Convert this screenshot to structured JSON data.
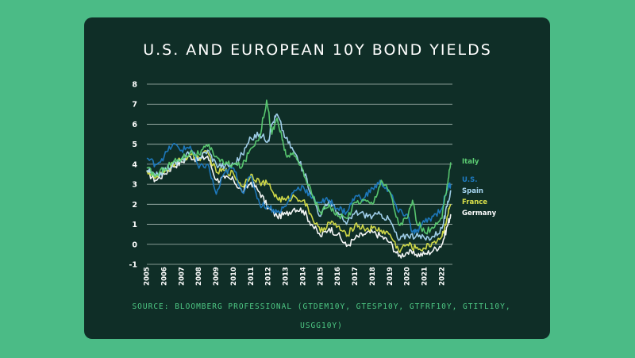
{
  "chart_data": {
    "type": "line",
    "title": "U.S. AND EUROPEAN 10Y BOND YIELDS",
    "xlabel": "",
    "ylabel": "",
    "xlim": [
      2005,
      2022.6
    ],
    "ylim": [
      -1,
      8
    ],
    "y_ticks": [
      -1,
      0,
      1,
      2,
      3,
      4,
      5,
      6,
      7,
      8
    ],
    "x_ticks": [
      2005,
      2006,
      2007,
      2008,
      2009,
      2010,
      2011,
      2012,
      2013,
      2014,
      2015,
      2016,
      2017,
      2018,
      2019,
      2020,
      2021,
      2022
    ],
    "grid": true,
    "legend": "right, labels at line ends",
    "source": "SOURCE: BLOOMBERG PROFESSIONAL (GTDEM10Y, GTESP10Y, GTFRF10Y, GTITL10Y, USGG10Y)",
    "series": [
      {
        "name": "Germany",
        "color": "#ffffff",
        "x": [
          2005,
          2005.5,
          2006,
          2006.5,
          2007,
          2007.5,
          2008,
          2008.5,
          2009,
          2009.5,
          2010,
          2010.5,
          2011,
          2011.5,
          2012,
          2012.5,
          2013,
          2013.5,
          2014,
          2014.5,
          2015,
          2015.5,
          2016,
          2016.5,
          2017,
          2017.5,
          2018,
          2018.5,
          2019,
          2019.5,
          2020,
          2020.5,
          2021,
          2021.5,
          2022,
          2022.3,
          2022.5
        ],
        "values": [
          3.6,
          3.2,
          3.5,
          3.9,
          4.1,
          4.4,
          4.2,
          4.4,
          3.2,
          3.3,
          3.2,
          2.6,
          3.1,
          2.6,
          1.8,
          1.4,
          1.5,
          1.8,
          1.7,
          1.0,
          0.4,
          0.8,
          0.5,
          -0.1,
          0.3,
          0.5,
          0.6,
          0.4,
          0.1,
          -0.6,
          -0.4,
          -0.5,
          -0.5,
          -0.3,
          0.0,
          0.9,
          1.5
        ]
      },
      {
        "name": "France",
        "color": "#d9e04a",
        "x": [
          2005,
          2005.5,
          2006,
          2006.5,
          2007,
          2007.5,
          2008,
          2008.5,
          2009,
          2009.5,
          2010,
          2010.5,
          2011,
          2011.5,
          2012,
          2012.5,
          2013,
          2013.5,
          2014,
          2014.5,
          2015,
          2015.5,
          2016,
          2016.5,
          2017,
          2017.5,
          2018,
          2018.5,
          2019,
          2019.5,
          2020,
          2020.5,
          2021,
          2021.5,
          2022,
          2022.3,
          2022.5
        ],
        "values": [
          3.7,
          3.3,
          3.6,
          4.0,
          4.2,
          4.5,
          4.3,
          4.6,
          3.6,
          3.7,
          3.5,
          2.9,
          3.5,
          3.1,
          3.0,
          2.3,
          2.2,
          2.4,
          2.2,
          1.4,
          0.6,
          1.1,
          0.9,
          0.4,
          1.0,
          0.8,
          0.8,
          0.7,
          0.5,
          -0.3,
          0.0,
          -0.2,
          -0.2,
          0.1,
          0.4,
          1.4,
          2.0
        ]
      },
      {
        "name": "Spain",
        "color": "#a7d6f2",
        "x": [
          2005,
          2005.5,
          2006,
          2006.5,
          2007,
          2007.5,
          2008,
          2008.5,
          2009,
          2009.5,
          2010,
          2010.5,
          2011,
          2011.5,
          2012,
          2012.2,
          2012.5,
          2013,
          2013.5,
          2014,
          2014.5,
          2015,
          2015.5,
          2016,
          2016.5,
          2017,
          2017.5,
          2018,
          2018.5,
          2019,
          2019.5,
          2020,
          2020.5,
          2021,
          2021.5,
          2022,
          2022.3,
          2022.5
        ],
        "values": [
          3.7,
          3.4,
          3.7,
          4.0,
          4.2,
          4.6,
          4.3,
          4.7,
          4.0,
          3.9,
          4.0,
          4.5,
          5.3,
          5.5,
          5.2,
          6.0,
          6.5,
          5.3,
          4.6,
          3.7,
          2.5,
          1.4,
          2.2,
          1.6,
          1.0,
          1.6,
          1.5,
          1.4,
          1.5,
          1.2,
          0.2,
          0.5,
          0.4,
          0.3,
          0.4,
          0.8,
          1.9,
          2.7
        ]
      },
      {
        "name": "U.S.",
        "color": "#1f7bc2",
        "x": [
          2005,
          2005.5,
          2006,
          2006.5,
          2007,
          2007.5,
          2008,
          2008.5,
          2009,
          2009.5,
          2010,
          2010.5,
          2011,
          2011.5,
          2012,
          2012.5,
          2013,
          2013.5,
          2014,
          2014.5,
          2015,
          2015.5,
          2016,
          2016.5,
          2017,
          2017.5,
          2018,
          2018.5,
          2019,
          2019.5,
          2020,
          2020.3,
          2020.5,
          2021,
          2021.5,
          2022,
          2022.3,
          2022.5
        ],
        "values": [
          4.3,
          4.0,
          4.4,
          5.0,
          4.7,
          4.9,
          3.8,
          4.0,
          2.5,
          3.6,
          3.8,
          2.6,
          3.4,
          2.0,
          1.9,
          1.6,
          1.9,
          2.7,
          2.9,
          2.3,
          2.1,
          2.2,
          1.8,
          1.6,
          2.4,
          2.3,
          2.8,
          3.1,
          2.6,
          1.6,
          1.5,
          0.6,
          0.6,
          1.1,
          1.4,
          1.8,
          2.8,
          3.0
        ]
      },
      {
        "name": "Italy",
        "color": "#5ccd73",
        "x": [
          2005,
          2005.5,
          2006,
          2006.5,
          2007,
          2007.5,
          2008,
          2008.5,
          2009,
          2009.5,
          2010,
          2010.5,
          2011,
          2011.5,
          2011.9,
          2012.2,
          2012.5,
          2012.8,
          2013,
          2013.5,
          2014,
          2014.5,
          2015,
          2015.5,
          2016,
          2016.5,
          2017,
          2017.5,
          2018,
          2018.5,
          2019,
          2019.5,
          2020,
          2020.3,
          2020.5,
          2021,
          2021.5,
          2022,
          2022.3,
          2022.5
        ],
        "values": [
          3.8,
          3.4,
          3.8,
          4.1,
          4.3,
          4.6,
          4.5,
          4.9,
          4.4,
          4.0,
          4.0,
          3.9,
          4.8,
          5.4,
          7.2,
          5.5,
          6.3,
          5.2,
          4.5,
          4.4,
          3.7,
          2.5,
          1.6,
          2.0,
          1.4,
          1.3,
          2.1,
          2.2,
          2.0,
          3.2,
          2.6,
          1.0,
          1.3,
          2.2,
          1.2,
          0.6,
          0.8,
          1.3,
          3.0,
          4.1
        ]
      }
    ],
    "end_labels": [
      "Italy",
      "U.S.",
      "Spain",
      "France",
      "Germany"
    ]
  }
}
